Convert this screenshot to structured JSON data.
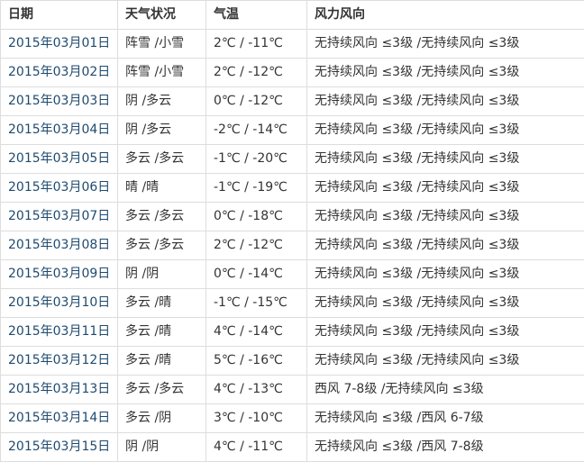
{
  "colors": {
    "background": "#ffffff",
    "border": "#dddddd",
    "header_text": "#333333",
    "body_text": "#333333",
    "date_link": "#1e4a6e"
  },
  "table": {
    "headers": {
      "date": "日期",
      "weather": "天气状况",
      "temp": "气温",
      "wind": "风力风向"
    },
    "rows": [
      {
        "date": "2015年03月01日",
        "weather": "阵雪 /小雪",
        "temp": "2℃ / -11℃",
        "wind": "无持续风向 ≤3级 /无持续风向 ≤3级"
      },
      {
        "date": "2015年03月02日",
        "weather": "阵雪 /小雪",
        "temp": "2℃ / -12℃",
        "wind": "无持续风向 ≤3级 /无持续风向 ≤3级"
      },
      {
        "date": "2015年03月03日",
        "weather": "阴 /多云",
        "temp": "0℃ / -12℃",
        "wind": "无持续风向 ≤3级 /无持续风向 ≤3级"
      },
      {
        "date": "2015年03月04日",
        "weather": "阴 /多云",
        "temp": "-2℃ / -14℃",
        "wind": "无持续风向 ≤3级 /无持续风向 ≤3级"
      },
      {
        "date": "2015年03月05日",
        "weather": "多云 /多云",
        "temp": "-1℃ / -20℃",
        "wind": "无持续风向 ≤3级 /无持续风向 ≤3级"
      },
      {
        "date": "2015年03月06日",
        "weather": "晴 /晴",
        "temp": "-1℃ / -19℃",
        "wind": "无持续风向 ≤3级 /无持续风向 ≤3级"
      },
      {
        "date": "2015年03月07日",
        "weather": "多云 /多云",
        "temp": "0℃ / -18℃",
        "wind": "无持续风向 ≤3级 /无持续风向 ≤3级"
      },
      {
        "date": "2015年03月08日",
        "weather": "多云 /多云",
        "temp": "2℃ / -12℃",
        "wind": "无持续风向 ≤3级 /无持续风向 ≤3级"
      },
      {
        "date": "2015年03月09日",
        "weather": "阴 /阴",
        "temp": "0℃ / -14℃",
        "wind": "无持续风向 ≤3级 /无持续风向 ≤3级"
      },
      {
        "date": "2015年03月10日",
        "weather": "多云 /晴",
        "temp": "-1℃ / -15℃",
        "wind": "无持续风向 ≤3级 /无持续风向 ≤3级"
      },
      {
        "date": "2015年03月11日",
        "weather": "多云 /晴",
        "temp": "4℃ / -14℃",
        "wind": "无持续风向 ≤3级 /无持续风向 ≤3级"
      },
      {
        "date": "2015年03月12日",
        "weather": "多云 /晴",
        "temp": "5℃ / -16℃",
        "wind": "无持续风向 ≤3级 /无持续风向 ≤3级"
      },
      {
        "date": "2015年03月13日",
        "weather": "多云 /多云",
        "temp": "4℃ / -13℃",
        "wind": "西风 7-8级 /无持续风向 ≤3级"
      },
      {
        "date": "2015年03月14日",
        "weather": "多云 /阴",
        "temp": "3℃ / -10℃",
        "wind": "无持续风向 ≤3级 /西风 6-7级"
      },
      {
        "date": "2015年03月15日",
        "weather": "阴 /阴",
        "temp": "4℃ / -11℃",
        "wind": "无持续风向 ≤3级 /西风 7-8级"
      }
    ]
  }
}
